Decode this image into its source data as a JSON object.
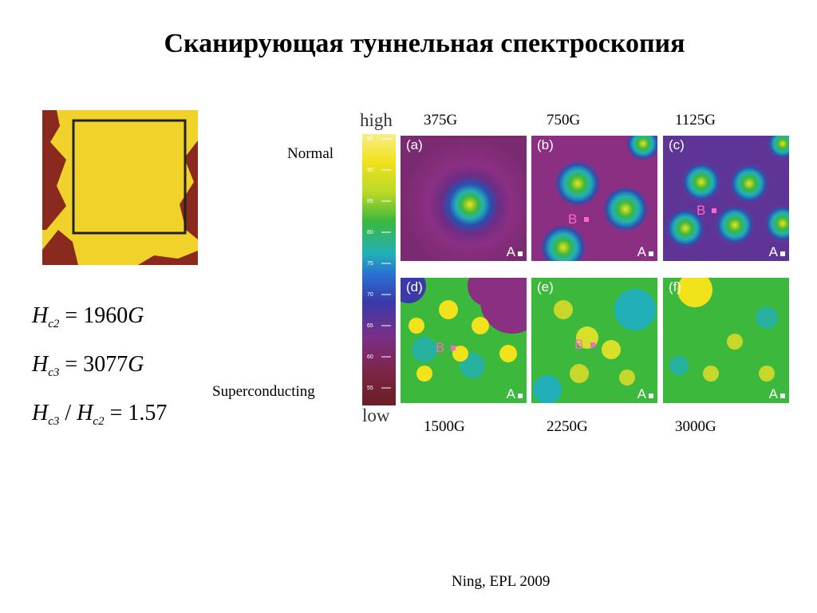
{
  "title": "Сканирующая туннельная спектроскопия",
  "formulas": {
    "f1": {
      "H": "H",
      "sub": "c2",
      "eq": " = 1960",
      "G": "G"
    },
    "f2": {
      "H": "H",
      "sub": "c3",
      "eq": " = 3077",
      "G": "G"
    },
    "f3": {
      "H": "H",
      "sub": "c3",
      "slash": " / ",
      "H2": "H",
      "sub2": "c2",
      "eq": " = 1.57"
    }
  },
  "row_labels": {
    "normal": "Normal",
    "superconducting": "Superconducting"
  },
  "colorbar": {
    "high": "high",
    "low": "low",
    "ticks": [
      "95",
      "90",
      "85",
      "80",
      "75",
      "70",
      "65",
      "60",
      "55"
    ]
  },
  "panels": [
    {
      "id": "a",
      "label": "(a)",
      "field": "375G",
      "a_marker": "A",
      "b_marker": ""
    },
    {
      "id": "b",
      "label": "(b)",
      "field": "750G",
      "a_marker": "A",
      "b_marker": "B"
    },
    {
      "id": "c",
      "label": "(c)",
      "field": "1125G",
      "a_marker": "A",
      "b_marker": "B"
    },
    {
      "id": "d",
      "label": "(d)",
      "field": "1500G",
      "a_marker": "A",
      "b_marker": "B"
    },
    {
      "id": "e",
      "label": "(e)",
      "field": "2250G",
      "a_marker": "A",
      "b_marker": "B"
    },
    {
      "id": "f",
      "label": "(f)",
      "field": "3000G",
      "a_marker": "A",
      "b_marker": ""
    }
  ],
  "citation": "Ning, EPL 2009",
  "colors": {
    "sample_yellow": "#f0d22a",
    "sample_brown": "#8a2a1e",
    "map_purple": "#8b2f83",
    "map_blue": "#2050c0",
    "map_cyan": "#22c5d8",
    "map_green": "#3bbf3b",
    "map_yellow": "#f3e51f"
  }
}
